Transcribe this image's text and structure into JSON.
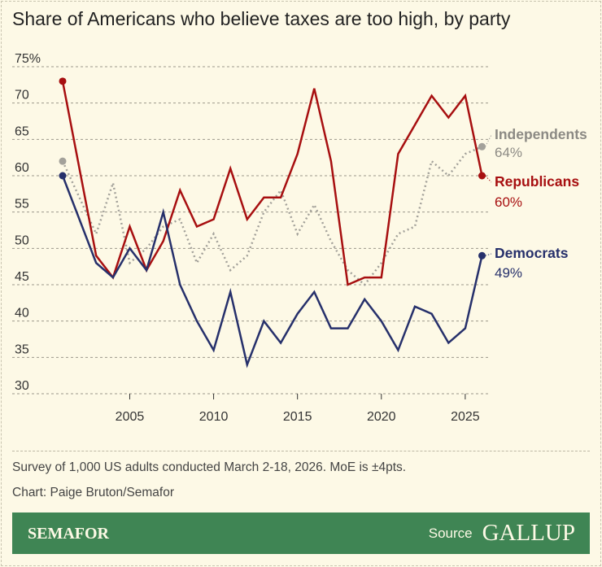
{
  "title": "Share of Americans who believe taxes are too high, by party",
  "note": "Survey of 1,000 US adults conducted March 2-18, 2026. MoE is ±4pts.",
  "credit": "Chart: Paige Bruton/Semafor",
  "footer": {
    "brand": "SEMAFOR",
    "source_label": "Source",
    "source": "GALLUP"
  },
  "chart_data": {
    "type": "line",
    "title": "Share of Americans who believe taxes are too high, by party",
    "x": [
      2001,
      2003,
      2004,
      2005,
      2006,
      2007,
      2008,
      2009,
      2010,
      2011,
      2012,
      2013,
      2014,
      2015,
      2016,
      2017,
      2018,
      2019,
      2020,
      2021,
      2022,
      2023,
      2024,
      2025,
      2026
    ],
    "ylim": [
      30,
      75
    ],
    "y_ticks": [
      "75%",
      "70",
      "65",
      "60",
      "55",
      "50",
      "45",
      "40",
      "35",
      "30"
    ],
    "x_ticks": [
      "2005",
      "2010",
      "2015",
      "2020",
      "2025"
    ],
    "grid": true,
    "series": [
      {
        "name": "Independents",
        "end_label": "64%",
        "color": "#a3a19a",
        "label_color": "#8c8a84",
        "style": "dotted",
        "values": [
          62,
          52,
          59,
          48,
          50,
          53,
          54,
          48,
          52,
          47,
          49,
          55,
          58,
          52,
          56,
          51,
          47,
          45,
          48,
          52,
          53,
          62,
          60,
          63,
          64
        ]
      },
      {
        "name": "Republicans",
        "end_label": "60%",
        "color": "#a70f10",
        "label_color": "#a70f10",
        "style": "solid",
        "values": [
          73,
          49,
          46,
          53,
          47,
          51,
          58,
          53,
          54,
          61,
          54,
          57,
          57,
          63,
          72,
          62,
          45,
          46,
          46,
          63,
          67,
          71,
          68,
          71,
          60
        ]
      },
      {
        "name": "Democrats",
        "end_label": "49%",
        "color": "#26306b",
        "label_color": "#26306b",
        "style": "solid",
        "values": [
          60,
          48,
          46,
          50,
          47,
          55,
          45,
          40,
          36,
          44,
          34,
          40,
          37,
          41,
          44,
          39,
          39,
          43,
          40,
          36,
          42,
          41,
          37,
          39,
          49
        ]
      }
    ]
  }
}
